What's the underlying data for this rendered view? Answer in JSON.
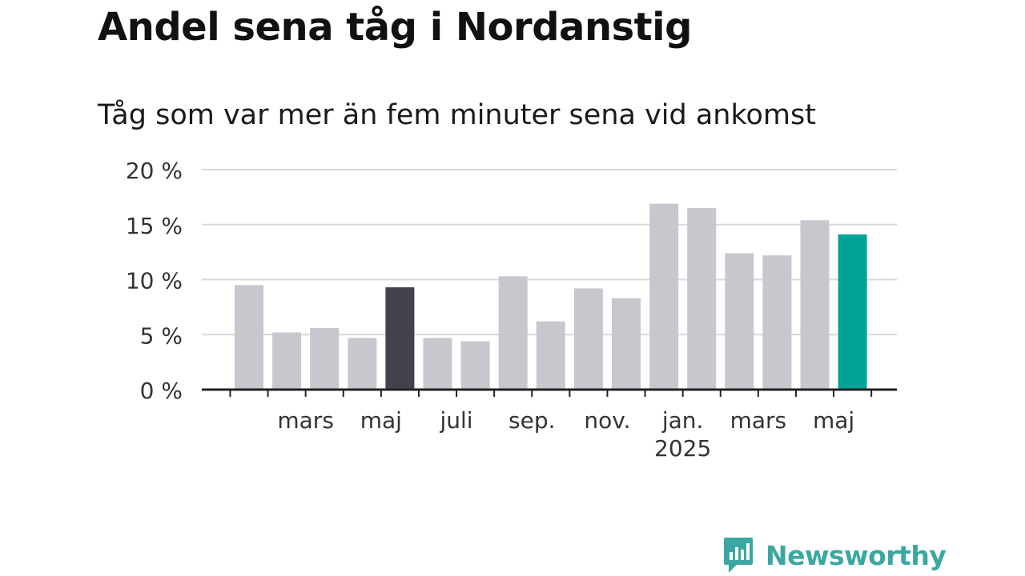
{
  "title": "Andel sena tåg i Nordanstig",
  "subtitle": "Tåg som var mer än fem minuter sena vid ankomst",
  "logo_text": "Newsworthy",
  "colors": {
    "bar_default": "#c8c7ce",
    "bar_highlight_dark": "#42414d",
    "bar_highlight_accent": "#00a396",
    "grid": "#d9d9d9",
    "axis": "#222222",
    "logo": "#3aa8a1"
  },
  "chart_data": {
    "type": "bar",
    "title": "Andel sena tåg i Nordanstig",
    "subtitle": "Tåg som var mer än fem minuter sena vid ankomst",
    "xlabel": "",
    "ylabel": "",
    "ylim": [
      0,
      20
    ],
    "y_ticks": [
      0,
      5,
      10,
      15,
      20
    ],
    "y_tick_labels": [
      "0 %",
      "5 %",
      "10 %",
      "15 %",
      "20 %"
    ],
    "grid": true,
    "values": [
      9.5,
      5.2,
      5.6,
      4.7,
      9.3,
      4.7,
      4.4,
      10.3,
      6.2,
      9.2,
      8.3,
      16.9,
      16.5,
      12.4,
      12.2,
      15.4,
      14.1
    ],
    "highlight": {
      "4": "bar_highlight_dark",
      "16": "bar_highlight_accent"
    },
    "x_tick_labels": [
      {
        "bar_index": 1.5,
        "label": "mars",
        "sublabel": ""
      },
      {
        "bar_index": 3.5,
        "label": "maj",
        "sublabel": ""
      },
      {
        "bar_index": 5.5,
        "label": "juli",
        "sublabel": ""
      },
      {
        "bar_index": 7.5,
        "label": "sep.",
        "sublabel": ""
      },
      {
        "bar_index": 9.5,
        "label": "nov.",
        "sublabel": ""
      },
      {
        "bar_index": 11.5,
        "label": "jan.",
        "sublabel": "2025"
      },
      {
        "bar_index": 13.5,
        "label": "mars",
        "sublabel": ""
      },
      {
        "bar_index": 15.5,
        "label": "maj",
        "sublabel": ""
      }
    ]
  }
}
